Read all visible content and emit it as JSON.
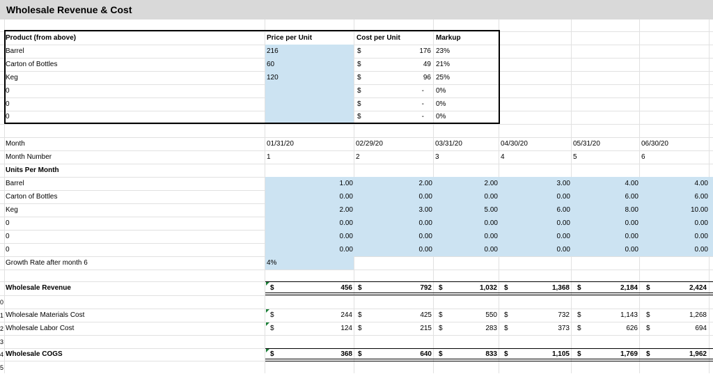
{
  "title": "Wholesale Revenue & Cost",
  "product_table": {
    "headers": {
      "product": "Product (from above)",
      "price": "Price per Unit",
      "cost": "Cost per Unit",
      "markup": "Markup"
    },
    "rows": [
      {
        "product": "Barrel",
        "price": "216",
        "cost_cur": "$",
        "cost": "176",
        "markup": "23%"
      },
      {
        "product": "Carton of Bottles",
        "price": "60",
        "cost_cur": "$",
        "cost": "49",
        "markup": "21%"
      },
      {
        "product": "Keg",
        "price": "120",
        "cost_cur": "$",
        "cost": "96",
        "markup": "25%"
      },
      {
        "product": "0",
        "price": "",
        "cost_cur": "$",
        "cost": "-",
        "markup": "0%"
      },
      {
        "product": "0",
        "price": "",
        "cost_cur": "$",
        "cost": "-",
        "markup": "0%"
      },
      {
        "product": "0",
        "price": "",
        "cost_cur": "$",
        "cost": "-",
        "markup": "0%"
      }
    ]
  },
  "labels": {
    "month": "Month",
    "month_number": "Month Number",
    "units_per_month": "Units Per Month",
    "growth_rate": "Growth Rate after month 6",
    "wholesale_revenue": "Wholesale Revenue",
    "materials_cost": "Wholesale Materials Cost",
    "labor_cost": "Wholesale Labor Cost",
    "cogs": "Wholesale COGS"
  },
  "months": [
    "01/31/20",
    "02/29/20",
    "03/31/20",
    "04/30/20",
    "05/31/20",
    "06/30/20"
  ],
  "month_numbers": [
    "1",
    "2",
    "3",
    "4",
    "5",
    "6"
  ],
  "growth_rate_value": "4%",
  "currency": "$",
  "units": [
    {
      "label": "Barrel",
      "values": [
        "1.00",
        "2.00",
        "2.00",
        "3.00",
        "4.00",
        "4.00"
      ]
    },
    {
      "label": "Carton of Bottles",
      "values": [
        "0.00",
        "0.00",
        "0.00",
        "0.00",
        "6.00",
        "6.00"
      ]
    },
    {
      "label": "Keg",
      "values": [
        "2.00",
        "3.00",
        "5.00",
        "6.00",
        "8.00",
        "10.00"
      ]
    },
    {
      "label": "0",
      "values": [
        "0.00",
        "0.00",
        "0.00",
        "0.00",
        "0.00",
        "0.00"
      ]
    },
    {
      "label": "0",
      "values": [
        "0.00",
        "0.00",
        "0.00",
        "0.00",
        "0.00",
        "0.00"
      ]
    },
    {
      "label": "0",
      "values": [
        "0.00",
        "0.00",
        "0.00",
        "0.00",
        "0.00",
        "0.00"
      ]
    }
  ],
  "revenue": [
    "456",
    "792",
    "1,032",
    "1,368",
    "2,184",
    "2,424"
  ],
  "materials": [
    "244",
    "425",
    "550",
    "732",
    "1,143",
    "1,268"
  ],
  "labor": [
    "124",
    "215",
    "283",
    "373",
    "626",
    "694"
  ],
  "cogs": [
    "368",
    "640",
    "833",
    "1,105",
    "1,769",
    "1,962"
  ],
  "row_numbers": [
    "0",
    "1",
    "2",
    "3",
    "4",
    "5"
  ]
}
